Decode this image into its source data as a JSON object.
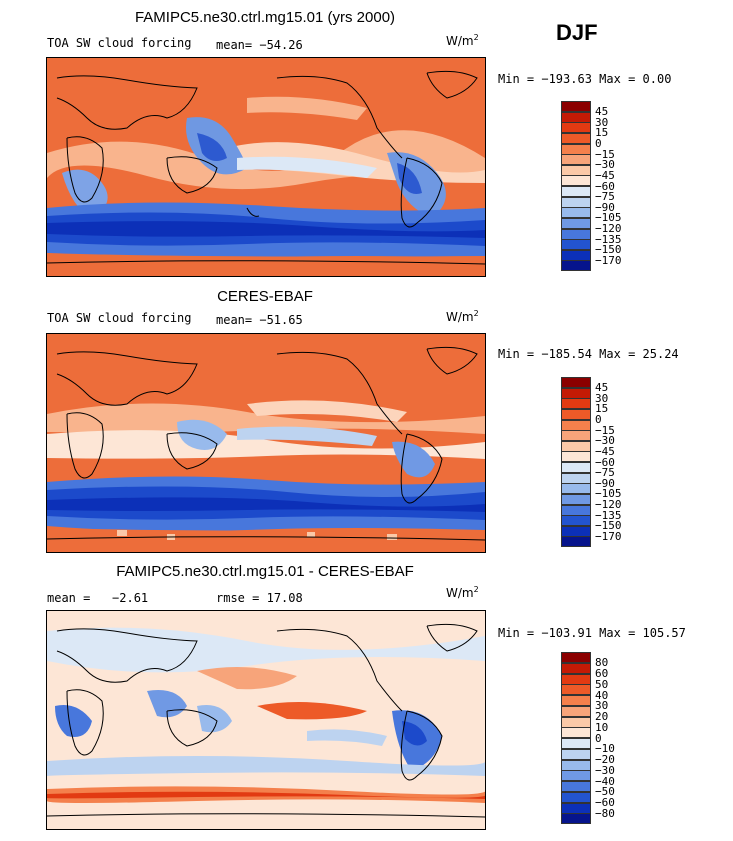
{
  "season": "DJF",
  "panels": [
    {
      "id": "model",
      "title": "FAMIPC5.ne30.ctrl.mg15.01 (yrs 2000)",
      "left_label": "TOA SW cloud forcing",
      "mean_label": "mean=",
      "mean_value": "−54.26",
      "units_base": "W/m",
      "units_exp": "2",
      "min_label": "Min =",
      "min_value": "−193.63",
      "max_label": "Max =",
      "max_value": "0.00",
      "levels": [
        "45",
        "30",
        "15",
        "0",
        "−15",
        "−30",
        "−45",
        "−60",
        "−75",
        "−90",
        "−105",
        "−120",
        "−135",
        "−150",
        "−170"
      ],
      "colors": [
        "#8b0000",
        "#c41a05",
        "#e23a12",
        "#ed5a28",
        "#f4804c",
        "#f7a47a",
        "#fbc9a8",
        "#fde6d6",
        "#dce8f6",
        "#bdd3f0",
        "#98baec",
        "#7099e4",
        "#4877dc",
        "#2354cf",
        "#0c30b8",
        "#06148c"
      ]
    },
    {
      "id": "obs",
      "title": "CERES-EBAF",
      "left_label": "TOA SW cloud forcing",
      "mean_label": "mean=",
      "mean_value": "−51.65",
      "units_base": "W/m",
      "units_exp": "2",
      "min_label": "Min =",
      "min_value": "−185.54",
      "max_label": "Max =",
      "max_value": "25.24",
      "levels": [
        "45",
        "30",
        "15",
        "0",
        "−15",
        "−30",
        "−45",
        "−60",
        "−75",
        "−90",
        "−105",
        "−120",
        "−135",
        "−150",
        "−170"
      ],
      "colors": [
        "#8b0000",
        "#c41a05",
        "#e23a12",
        "#ed5a28",
        "#f4804c",
        "#f7a47a",
        "#fbc9a8",
        "#fde6d6",
        "#dce8f6",
        "#bdd3f0",
        "#98baec",
        "#7099e4",
        "#4877dc",
        "#2354cf",
        "#0c30b8",
        "#06148c"
      ]
    },
    {
      "id": "diff",
      "title": "FAMIPC5.ne30.ctrl.mg15.01 - CERES-EBAF",
      "left_label": "mean =   −2.61",
      "mean_label": "rmse =",
      "mean_value": "17.08",
      "units_base": "W/m",
      "units_exp": "2",
      "min_label": "Min =",
      "min_value": "−103.91",
      "max_label": "Max =",
      "max_value": "105.57",
      "levels": [
        "80",
        "60",
        "50",
        "40",
        "30",
        "20",
        "10",
        "0",
        "−10",
        "−20",
        "−30",
        "−40",
        "−50",
        "−60",
        "−80"
      ],
      "colors": [
        "#8b0000",
        "#c41a05",
        "#e23a12",
        "#ed5a28",
        "#f4804c",
        "#f7a47a",
        "#fbc9a8",
        "#fde6d6",
        "#dce8f6",
        "#bdd3f0",
        "#98baec",
        "#7099e4",
        "#4877dc",
        "#2354cf",
        "#0c30b8",
        "#06148c"
      ]
    }
  ]
}
